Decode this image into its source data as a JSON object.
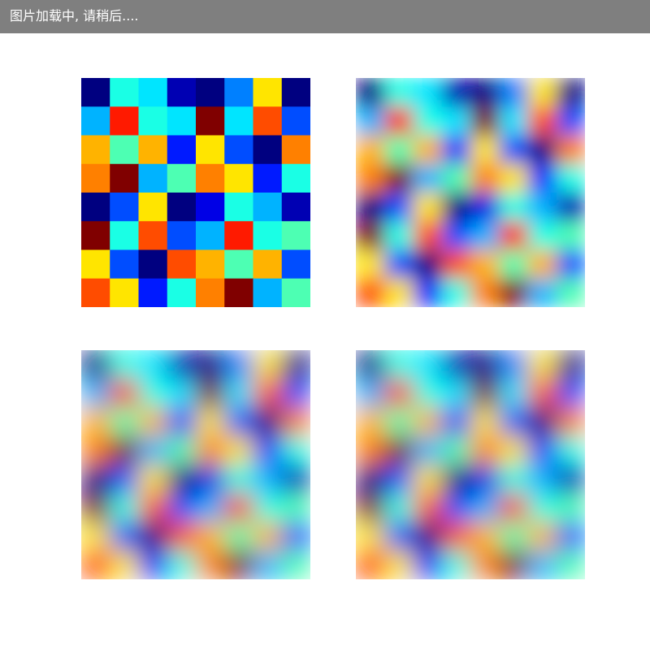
{
  "loading_bar": {
    "text": "图片加载中, 请稍后....",
    "background": "#7f7f7f",
    "text_color": "#ffffff"
  },
  "chart_data": [
    {
      "type": "heatmap",
      "title": "",
      "interpolation": "nearest",
      "colormap": "jet",
      "rows": 8,
      "cols": 8,
      "values": [
        [
          0.0,
          0.4,
          0.35,
          0.05,
          0.0,
          0.25,
          0.65,
          0.0
        ],
        [
          0.3,
          0.85,
          0.4,
          0.35,
          1.0,
          0.35,
          0.8,
          0.2
        ],
        [
          0.7,
          0.45,
          0.7,
          0.15,
          0.65,
          0.2,
          0.0,
          0.75
        ],
        [
          0.75,
          1.0,
          0.3,
          0.45,
          0.75,
          0.65,
          0.15,
          0.4
        ],
        [
          0.0,
          0.2,
          0.65,
          0.0,
          0.1,
          0.4,
          0.3,
          0.05
        ],
        [
          1.0,
          0.4,
          0.8,
          0.2,
          0.3,
          0.85,
          0.4,
          0.45
        ],
        [
          0.65,
          0.2,
          0.0,
          0.8,
          0.7,
          0.45,
          0.7,
          0.2
        ],
        [
          0.8,
          0.65,
          0.15,
          0.4,
          0.75,
          1.0,
          0.3,
          0.45
        ]
      ]
    },
    {
      "type": "heatmap",
      "title": "",
      "interpolation": "linear",
      "colormap": "jet",
      "rows": 8,
      "cols": 8,
      "values": [
        [
          0.0,
          0.4,
          0.35,
          0.05,
          0.0,
          0.25,
          0.65,
          0.0
        ],
        [
          0.3,
          0.85,
          0.4,
          0.35,
          1.0,
          0.35,
          0.8,
          0.2
        ],
        [
          0.7,
          0.45,
          0.7,
          0.15,
          0.65,
          0.2,
          0.0,
          0.75
        ],
        [
          0.75,
          1.0,
          0.3,
          0.45,
          0.75,
          0.65,
          0.15,
          0.4
        ],
        [
          0.0,
          0.2,
          0.65,
          0.0,
          0.1,
          0.4,
          0.3,
          0.05
        ],
        [
          1.0,
          0.4,
          0.8,
          0.2,
          0.3,
          0.85,
          0.4,
          0.45
        ],
        [
          0.65,
          0.2,
          0.0,
          0.8,
          0.7,
          0.45,
          0.7,
          0.2
        ],
        [
          0.8,
          0.65,
          0.15,
          0.4,
          0.75,
          1.0,
          0.3,
          0.45
        ]
      ]
    },
    {
      "type": "heatmap",
      "title": "",
      "interpolation": "cubic",
      "colormap": "jet",
      "rows": 8,
      "cols": 8,
      "values": [
        [
          0.0,
          0.4,
          0.35,
          0.05,
          0.0,
          0.25,
          0.65,
          0.0
        ],
        [
          0.3,
          0.85,
          0.4,
          0.35,
          1.0,
          0.35,
          0.8,
          0.2
        ],
        [
          0.7,
          0.45,
          0.7,
          0.15,
          0.65,
          0.2,
          0.0,
          0.75
        ],
        [
          0.75,
          1.0,
          0.3,
          0.45,
          0.75,
          0.65,
          0.15,
          0.4
        ],
        [
          0.0,
          0.2,
          0.65,
          0.0,
          0.1,
          0.4,
          0.3,
          0.05
        ],
        [
          1.0,
          0.4,
          0.8,
          0.2,
          0.3,
          0.85,
          0.4,
          0.45
        ],
        [
          0.65,
          0.2,
          0.0,
          0.8,
          0.7,
          0.45,
          0.7,
          0.2
        ],
        [
          0.8,
          0.65,
          0.15,
          0.4,
          0.75,
          1.0,
          0.3,
          0.45
        ]
      ]
    },
    {
      "type": "heatmap",
      "title": "",
      "interpolation": "lanczos",
      "colormap": "jet",
      "rows": 8,
      "cols": 8,
      "values": [
        [
          0.0,
          0.4,
          0.35,
          0.05,
          0.0,
          0.25,
          0.65,
          0.0
        ],
        [
          0.3,
          0.85,
          0.4,
          0.35,
          1.0,
          0.35,
          0.8,
          0.2
        ],
        [
          0.7,
          0.45,
          0.7,
          0.15,
          0.65,
          0.2,
          0.0,
          0.75
        ],
        [
          0.75,
          1.0,
          0.3,
          0.45,
          0.75,
          0.65,
          0.15,
          0.4
        ],
        [
          0.0,
          0.2,
          0.65,
          0.0,
          0.1,
          0.4,
          0.3,
          0.05
        ],
        [
          1.0,
          0.4,
          0.8,
          0.2,
          0.3,
          0.85,
          0.4,
          0.45
        ],
        [
          0.65,
          0.2,
          0.0,
          0.8,
          0.7,
          0.45,
          0.7,
          0.2
        ],
        [
          0.8,
          0.65,
          0.15,
          0.4,
          0.75,
          1.0,
          0.3,
          0.45
        ]
      ]
    }
  ]
}
